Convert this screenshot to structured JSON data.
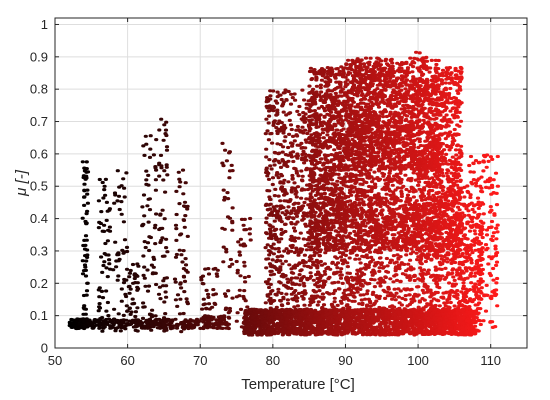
{
  "chart_data": {
    "type": "scatter",
    "title": "",
    "xlabel": "Temperature [°C]",
    "ylabel": "μ [-]",
    "xlim": [
      50,
      115
    ],
    "ylim": [
      0,
      1.02
    ],
    "xticks": [
      50,
      60,
      70,
      80,
      90,
      100,
      110
    ],
    "yticks": [
      0,
      0.1,
      0.2,
      0.3,
      0.4,
      0.5,
      0.6,
      0.7,
      0.8,
      0.9,
      1
    ],
    "xtick_labels": [
      "50",
      "60",
      "70",
      "80",
      "90",
      "100",
      "110"
    ],
    "ytick_labels": [
      "0",
      "0.1",
      "0.2",
      "0.3",
      "0.4",
      "0.5",
      "0.6",
      "0.7",
      "0.8",
      "0.9",
      "1"
    ],
    "grid": true,
    "legend": "none",
    "color_scale": {
      "low": "#000000",
      "high": "#ff1a1a",
      "mapped_to": "x"
    },
    "clusters": [
      {
        "name": "c1",
        "x": [
          52,
          55
        ],
        "y": [
          0.06,
          0.09
        ],
        "n": 90
      },
      {
        "name": "c2",
        "x": [
          53.8,
          54.6
        ],
        "y": [
          0.06,
          0.58
        ],
        "n": 60
      },
      {
        "name": "c3",
        "x": [
          56,
          57.6
        ],
        "y": [
          0.05,
          0.53
        ],
        "n": 60
      },
      {
        "name": "c4",
        "x": [
          58,
          60
        ],
        "y": [
          0.05,
          0.56
        ],
        "n": 55
      },
      {
        "name": "c5",
        "x": [
          60,
          61.5
        ],
        "y": [
          0.05,
          0.26
        ],
        "n": 40
      },
      {
        "name": "c6",
        "x": [
          55,
          70
        ],
        "y": [
          0.06,
          0.09
        ],
        "n": 220
      },
      {
        "name": "c7",
        "x": [
          62,
          64
        ],
        "y": [
          0.05,
          0.68
        ],
        "n": 70
      },
      {
        "name": "c8",
        "x": [
          64.3,
          65.5
        ],
        "y": [
          0.05,
          0.71
        ],
        "n": 60
      },
      {
        "name": "c9",
        "x": [
          66.5,
          68.3
        ],
        "y": [
          0.05,
          0.57
        ],
        "n": 60
      },
      {
        "name": "c10",
        "x": [
          70,
          74
        ],
        "y": [
          0.06,
          0.1
        ],
        "n": 90
      },
      {
        "name": "c11",
        "x": [
          70,
          72.5
        ],
        "y": [
          0.12,
          0.25
        ],
        "n": 30
      },
      {
        "name": "c12",
        "x": [
          73,
          74.5
        ],
        "y": [
          0.1,
          0.64
        ],
        "n": 40
      },
      {
        "name": "c13",
        "x": [
          75,
          77
        ],
        "y": [
          0.05,
          0.42
        ],
        "n": 40
      },
      {
        "name": "c14",
        "x": [
          76,
          108
        ],
        "y": [
          0.04,
          0.12
        ],
        "n": 2200
      },
      {
        "name": "c15",
        "x": [
          79,
          109
        ],
        "y": [
          0.1,
          0.45
        ],
        "n": 1500
      },
      {
        "name": "c16",
        "x": [
          79,
          90
        ],
        "y": [
          0.4,
          0.8
        ],
        "n": 500
      },
      {
        "name": "c17",
        "x": [
          85,
          106
        ],
        "y": [
          0.3,
          0.87
        ],
        "n": 2800
      },
      {
        "name": "c18",
        "x": [
          90,
          103
        ],
        "y": [
          0.55,
          0.9
        ],
        "n": 800
      },
      {
        "name": "c19",
        "x": [
          100,
          111
        ],
        "y": [
          0.05,
          0.6
        ],
        "n": 500
      },
      {
        "name": "c20",
        "x": [
          99,
          101
        ],
        "y": [
          0.88,
          0.92
        ],
        "n": 6
      }
    ]
  }
}
